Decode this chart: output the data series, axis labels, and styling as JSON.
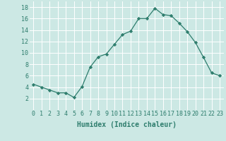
{
  "x": [
    0,
    1,
    2,
    3,
    4,
    5,
    6,
    7,
    8,
    9,
    10,
    11,
    12,
    13,
    14,
    15,
    16,
    17,
    18,
    19,
    20,
    21,
    22,
    23
  ],
  "y": [
    4.5,
    4.0,
    3.5,
    3.0,
    3.0,
    2.2,
    4.1,
    7.5,
    9.3,
    9.8,
    11.5,
    13.2,
    13.8,
    16.0,
    16.0,
    17.8,
    16.7,
    16.5,
    15.2,
    13.7,
    11.8,
    9.2,
    6.5,
    6.0
  ],
  "line_color": "#2e7d6d",
  "marker": "D",
  "marker_size": 2.2,
  "bg_color": "#cce8e4",
  "grid_color": "#ffffff",
  "xlabel": "Humidex (Indice chaleur)",
  "ylim": [
    0,
    19
  ],
  "xlim": [
    -0.5,
    23.5
  ],
  "yticks": [
    2,
    4,
    6,
    8,
    10,
    12,
    14,
    16,
    18
  ],
  "xticks": [
    0,
    1,
    2,
    3,
    4,
    5,
    6,
    7,
    8,
    9,
    10,
    11,
    12,
    13,
    14,
    15,
    16,
    17,
    18,
    19,
    20,
    21,
    22,
    23
  ],
  "xtick_labels": [
    "0",
    "1",
    "2",
    "3",
    "4",
    "5",
    "6",
    "7",
    "8",
    "9",
    "10",
    "11",
    "12",
    "13",
    "14",
    "15",
    "16",
    "17",
    "18",
    "19",
    "20",
    "21",
    "22",
    "23"
  ],
  "tick_color": "#2e7d6d",
  "label_fontsize": 7,
  "tick_fontsize": 6,
  "linewidth": 0.9
}
